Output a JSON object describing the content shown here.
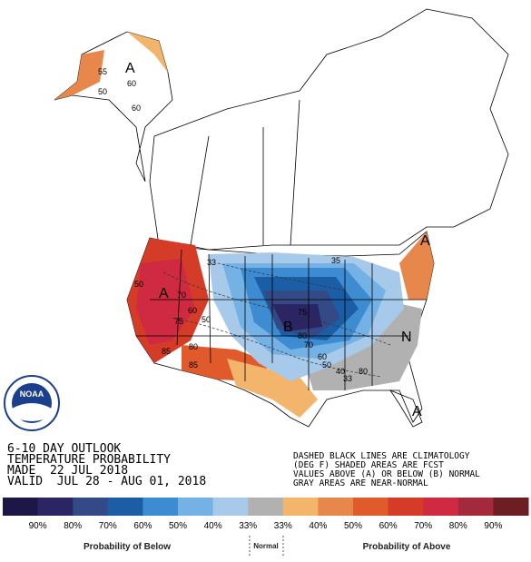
{
  "header": {
    "line1": "6-10 DAY OUTLOOK",
    "line2": "TEMPERATURE PROBABILITY",
    "line3": "MADE  22 JUL 2018",
    "line4": "VALID  JUL 28 - AUG 01, 2018"
  },
  "notes": [
    "DASHED BLACK LINES ARE CLIMATOLOGY",
    "(DEG F) SHADED AREAS ARE FCST",
    "VALUES ABOVE (A) OR BELOW (B) NORMAL",
    "GRAY AREAS ARE NEAR-NORMAL"
  ],
  "logo": "NOAA",
  "map": {
    "labels": [
      "A",
      "55",
      "60",
      "50",
      "60",
      "A",
      "50",
      "70",
      "60",
      "75",
      "50",
      "85",
      "80",
      "85",
      "33",
      "B",
      "75",
      "80",
      "70",
      "60",
      "50",
      "40",
      "33",
      "N",
      "A",
      "A",
      "80",
      "35"
    ]
  },
  "legend": {
    "labels": [
      "90%",
      "80%",
      "70%",
      "60%",
      "50%",
      "40%",
      "33%",
      "33%",
      "40%",
      "50%",
      "60%",
      "70%",
      "80%",
      "90%"
    ],
    "colors": [
      "#1d1747",
      "#2b2563",
      "#344a86",
      "#1b5ea6",
      "#3d8bd1",
      "#74b1e5",
      "#a7c9ea",
      "#b1b1b1",
      "#f3b56b",
      "#e8874b",
      "#df5b2c",
      "#d43c27",
      "#cf2a41",
      "#a4293a",
      "#6d1e22"
    ],
    "below": "Probability of Below",
    "normal": "Normal",
    "above": "Probability of Above"
  }
}
